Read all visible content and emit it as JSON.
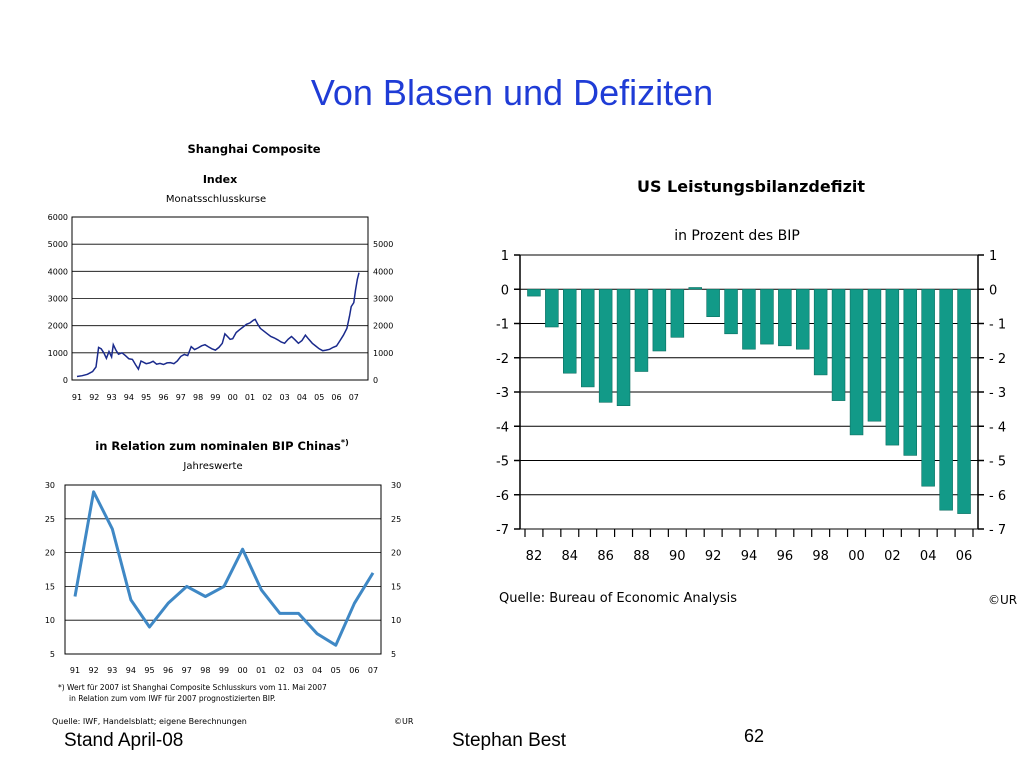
{
  "slide": {
    "title": "Von Blasen und Defiziten",
    "footer_left": "Stand April-08",
    "footer_center": "Stephan Best",
    "page_number": "62"
  },
  "colors": {
    "title": "#1f3cd6",
    "line": "#1a2a8c",
    "bar": "#129a88",
    "bar_edge": "#0b6e61"
  },
  "chart_data": [
    {
      "type": "line",
      "title": "Shanghai Composite",
      "subtitle": "Index",
      "subtitle2": "Monatsschlusskurse",
      "categories": [
        "91",
        "92",
        "93",
        "94",
        "95",
        "96",
        "97",
        "98",
        "99",
        "00",
        "01",
        "02",
        "03",
        "04",
        "05",
        "06",
        "07"
      ],
      "y_ticks": [
        "0",
        "1000",
        "2000",
        "3000",
        "4000",
        "5000",
        "6000"
      ],
      "y_ticks_right": [
        "0",
        "1000",
        "2000",
        "3000",
        "4000",
        "5000"
      ],
      "ylim": [
        0,
        6000
      ],
      "grid": true,
      "series": [
        {
          "values": [
            [
              91.0,
              130
            ],
            [
              91.3,
              160
            ],
            [
              91.6,
              210
            ],
            [
              91.9,
              310
            ],
            [
              92.1,
              480
            ],
            [
              92.25,
              1200
            ],
            [
              92.4,
              1150
            ],
            [
              92.55,
              1000
            ],
            [
              92.7,
              800
            ],
            [
              92.85,
              1050
            ],
            [
              93.0,
              850
            ],
            [
              93.1,
              1300
            ],
            [
              93.25,
              1100
            ],
            [
              93.4,
              950
            ],
            [
              93.6,
              1000
            ],
            [
              93.8,
              900
            ],
            [
              94.0,
              780
            ],
            [
              94.2,
              760
            ],
            [
              94.4,
              550
            ],
            [
              94.55,
              400
            ],
            [
              94.7,
              700
            ],
            [
              94.85,
              650
            ],
            [
              95.0,
              600
            ],
            [
              95.2,
              630
            ],
            [
              95.4,
              690
            ],
            [
              95.6,
              580
            ],
            [
              95.8,
              610
            ],
            [
              96.0,
              570
            ],
            [
              96.2,
              630
            ],
            [
              96.4,
              640
            ],
            [
              96.6,
              600
            ],
            [
              96.8,
              700
            ],
            [
              97.0,
              870
            ],
            [
              97.2,
              940
            ],
            [
              97.4,
              900
            ],
            [
              97.6,
              1230
            ],
            [
              97.8,
              1120
            ],
            [
              98.0,
              1180
            ],
            [
              98.2,
              1260
            ],
            [
              98.4,
              1300
            ],
            [
              98.6,
              1220
            ],
            [
              98.8,
              1150
            ],
            [
              99.0,
              1100
            ],
            [
              99.2,
              1200
            ],
            [
              99.4,
              1350
            ],
            [
              99.55,
              1700
            ],
            [
              99.7,
              1600
            ],
            [
              99.85,
              1500
            ],
            [
              100.0,
              1520
            ],
            [
              100.2,
              1750
            ],
            [
              100.4,
              1850
            ],
            [
              100.6,
              1950
            ],
            [
              100.8,
              2050
            ],
            [
              101.0,
              2100
            ],
            [
              101.2,
              2200
            ],
            [
              101.3,
              2230
            ],
            [
              101.45,
              2050
            ],
            [
              101.6,
              1900
            ],
            [
              101.8,
              1800
            ],
            [
              102.0,
              1700
            ],
            [
              102.2,
              1600
            ],
            [
              102.4,
              1550
            ],
            [
              102.6,
              1480
            ],
            [
              102.8,
              1400
            ],
            [
              103.0,
              1350
            ],
            [
              103.2,
              1500
            ],
            [
              103.4,
              1600
            ],
            [
              103.6,
              1480
            ],
            [
              103.8,
              1350
            ],
            [
              104.0,
              1450
            ],
            [
              104.2,
              1650
            ],
            [
              104.4,
              1500
            ],
            [
              104.6,
              1350
            ],
            [
              104.8,
              1250
            ],
            [
              105.0,
              1150
            ],
            [
              105.2,
              1080
            ],
            [
              105.4,
              1100
            ],
            [
              105.6,
              1130
            ],
            [
              105.8,
              1200
            ],
            [
              106.0,
              1250
            ],
            [
              106.2,
              1450
            ],
            [
              106.4,
              1650
            ],
            [
              106.6,
              1900
            ],
            [
              106.75,
              2350
            ],
            [
              106.85,
              2700
            ],
            [
              107.0,
              2850
            ],
            [
              107.1,
              3300
            ],
            [
              107.2,
              3700
            ],
            [
              107.3,
              3950
            ]
          ]
        }
      ]
    },
    {
      "type": "line",
      "title": "in Relation zum nominalen BIP Chinas",
      "title_sup": "*)",
      "subtitle": "Jahreswerte",
      "categories": [
        "91",
        "92",
        "93",
        "94",
        "95",
        "96",
        "97",
        "98",
        "99",
        "00",
        "01",
        "02",
        "03",
        "04",
        "05",
        "06",
        "07"
      ],
      "y_ticks": [
        "5",
        "10",
        "15",
        "20",
        "25",
        "30"
      ],
      "ylim": [
        5,
        30
      ],
      "grid": true,
      "series": [
        {
          "values": [
            13.5,
            29.0,
            23.5,
            13.0,
            9.0,
            12.5,
            15.0,
            13.5,
            15.0,
            20.5,
            14.5,
            11.0,
            11.0,
            8.0,
            6.3,
            12.5,
            17.0
          ]
        }
      ],
      "footnote_1": "*) Wert für 2007 ist Shanghai Composite Schlusskurs vom 11. Mai 2007",
      "footnote_2": "in Relation zum vom IWF für 2007 prognostizierten BIP.",
      "source": "Quelle: IWF, Handelsblatt; eigene Berechnungen",
      "copyright": "©UR"
    },
    {
      "type": "bar",
      "title": "US Leistungsbilanzdefizit",
      "subtitle": "in Prozent des BIP",
      "categories": [
        "82",
        "83",
        "84",
        "85",
        "86",
        "87",
        "88",
        "89",
        "90",
        "91",
        "92",
        "93",
        "94",
        "95",
        "96",
        "97",
        "98",
        "99",
        "00",
        "01",
        "02",
        "03",
        "04",
        "05",
        "06"
      ],
      "x_tick_labels": [
        "82",
        "84",
        "86",
        "88",
        "90",
        "92",
        "94",
        "96",
        "98",
        "00",
        "02",
        "04",
        "06"
      ],
      "values": [
        -0.2,
        -1.1,
        -2.45,
        -2.85,
        -3.3,
        -3.4,
        -2.4,
        -1.8,
        -1.4,
        0.05,
        -0.8,
        -1.3,
        -1.75,
        -1.6,
        -1.65,
        -1.75,
        -2.5,
        -3.25,
        -4.25,
        -3.85,
        -4.55,
        -4.85,
        -5.75,
        -6.45,
        -6.55
      ],
      "y_ticks": [
        "1",
        "0",
        "-1",
        "-2",
        "-3",
        "-4",
        "-5",
        "-6",
        "-7"
      ],
      "y_ticks_right": [
        "1",
        "0",
        "- 1",
        "- 2",
        "- 3",
        "- 4",
        "- 5",
        "- 6",
        "- 7"
      ],
      "ylim": [
        -7,
        1
      ],
      "grid": true,
      "source": "Quelle: Bureau of Economic Analysis",
      "copyright": "©UR"
    }
  ]
}
